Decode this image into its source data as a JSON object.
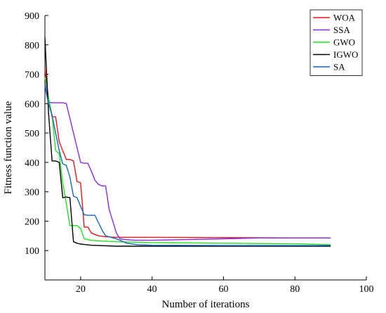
{
  "chart_data": {
    "type": "line",
    "title": "",
    "xlabel": "Number of iterations",
    "ylabel": "Fitness function value",
    "xlim": [
      10,
      100
    ],
    "ylim": [
      0,
      900
    ],
    "xticks": [
      20,
      40,
      60,
      80,
      100
    ],
    "yticks": [
      100,
      200,
      300,
      400,
      500,
      600,
      700,
      800,
      900
    ],
    "grid": false,
    "legend_position": "top-right",
    "series": [
      {
        "name": "WOA",
        "color": "#e8161b",
        "points": [
          [
            10,
            720
          ],
          [
            11,
            620
          ],
          [
            12,
            555
          ],
          [
            13,
            555
          ],
          [
            14,
            470
          ],
          [
            15,
            440
          ],
          [
            16,
            410
          ],
          [
            17,
            410
          ],
          [
            18,
            405
          ],
          [
            19,
            335
          ],
          [
            20,
            330
          ],
          [
            21,
            180
          ],
          [
            22,
            180
          ],
          [
            23,
            160
          ],
          [
            25,
            150
          ],
          [
            27,
            147
          ],
          [
            30,
            145
          ],
          [
            40,
            145
          ],
          [
            60,
            144
          ],
          [
            80,
            143
          ],
          [
            90,
            143
          ]
        ]
      },
      {
        "name": "SSA",
        "color": "#8a2be2",
        "points": [
          [
            10,
            670
          ],
          [
            11,
            605
          ],
          [
            12,
            603
          ],
          [
            13,
            603
          ],
          [
            14,
            603
          ],
          [
            15,
            603
          ],
          [
            16,
            600
          ],
          [
            18,
            500
          ],
          [
            19,
            450
          ],
          [
            20,
            400
          ],
          [
            21,
            397
          ],
          [
            22,
            397
          ],
          [
            23,
            370
          ],
          [
            24,
            340
          ],
          [
            25,
            325
          ],
          [
            26,
            320
          ],
          [
            27,
            320
          ],
          [
            28,
            240
          ],
          [
            29,
            200
          ],
          [
            30,
            160
          ],
          [
            31,
            140
          ],
          [
            32,
            138
          ],
          [
            35,
            135
          ],
          [
            40,
            135
          ],
          [
            60,
            140
          ],
          [
            70,
            143
          ],
          [
            90,
            143
          ]
        ]
      },
      {
        "name": "GWO",
        "color": "#22e022",
        "points": [
          [
            10,
            690
          ],
          [
            11,
            620
          ],
          [
            12,
            560
          ],
          [
            13,
            440
          ],
          [
            14,
            430
          ],
          [
            15,
            330
          ],
          [
            16,
            260
          ],
          [
            17,
            185
          ],
          [
            18,
            185
          ],
          [
            19,
            185
          ],
          [
            20,
            175
          ],
          [
            21,
            140
          ],
          [
            23,
            135
          ],
          [
            25,
            133
          ],
          [
            30,
            130
          ],
          [
            40,
            127
          ],
          [
            60,
            125
          ],
          [
            80,
            123
          ],
          [
            90,
            120
          ]
        ]
      },
      {
        "name": "IGWO",
        "color": "#000000",
        "points": [
          [
            10,
            825
          ],
          [
            11,
            570
          ],
          [
            12,
            405
          ],
          [
            13,
            405
          ],
          [
            14,
            400
          ],
          [
            15,
            280
          ],
          [
            16,
            282
          ],
          [
            17,
            280
          ],
          [
            18,
            130
          ],
          [
            19,
            125
          ],
          [
            20,
            122
          ],
          [
            23,
            118
          ],
          [
            30,
            115
          ],
          [
            40,
            115
          ],
          [
            60,
            115
          ],
          [
            80,
            115
          ],
          [
            90,
            115
          ]
        ]
      },
      {
        "name": "SA",
        "color": "#1565c0",
        "points": [
          [
            10,
            660
          ],
          [
            11,
            600
          ],
          [
            12,
            560
          ],
          [
            13,
            500
          ],
          [
            14,
            440
          ],
          [
            15,
            395
          ],
          [
            16,
            390
          ],
          [
            17,
            350
          ],
          [
            18,
            285
          ],
          [
            19,
            280
          ],
          [
            20,
            250
          ],
          [
            21,
            222
          ],
          [
            22,
            220
          ],
          [
            23,
            220
          ],
          [
            24,
            220
          ],
          [
            25,
            195
          ],
          [
            26,
            170
          ],
          [
            27,
            150
          ],
          [
            30,
            140
          ],
          [
            33,
            125
          ],
          [
            36,
            120
          ],
          [
            40,
            118
          ],
          [
            60,
            117
          ],
          [
            80,
            117
          ],
          [
            90,
            117
          ]
        ]
      }
    ]
  }
}
